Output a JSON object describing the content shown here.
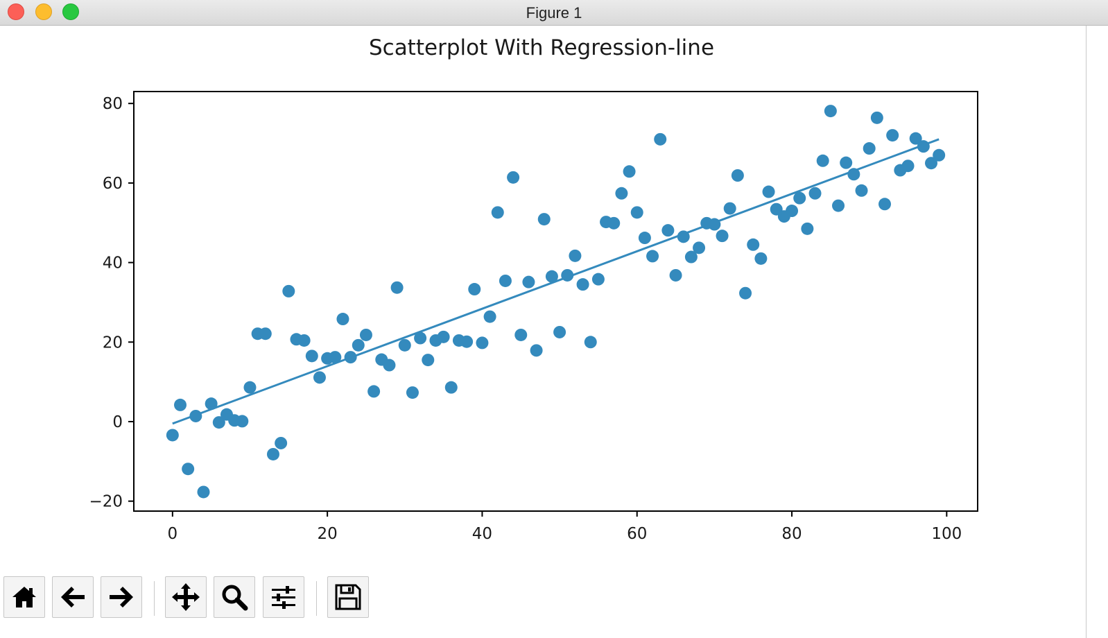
{
  "window": {
    "title": "Figure 1"
  },
  "toolbar": {
    "buttons": [
      {
        "name": "home-button",
        "icon": "home-icon"
      },
      {
        "name": "back-button",
        "icon": "arrow-left-icon"
      },
      {
        "name": "forward-button",
        "icon": "arrow-right-icon"
      },
      {
        "name": "pan-button",
        "icon": "move-icon"
      },
      {
        "name": "zoom-button",
        "icon": "magnifier-icon"
      },
      {
        "name": "configure-subplots-button",
        "icon": "sliders-icon"
      },
      {
        "name": "save-button",
        "icon": "floppy-disk-icon"
      }
    ]
  },
  "chart_data": {
    "type": "scatter",
    "title": "Scatterplot With Regression-line",
    "xlabel": "",
    "ylabel": "",
    "xlim": [
      -5,
      104
    ],
    "ylim": [
      -22.5,
      83
    ],
    "xticks": [
      0,
      20,
      40,
      60,
      80,
      100
    ],
    "yticks": [
      -20,
      0,
      20,
      40,
      60,
      80
    ],
    "grid": false,
    "colors": {
      "points": "#348abd",
      "line": "#348abd"
    },
    "series": [
      {
        "type": "scatter",
        "x": [
          0,
          1,
          2,
          3,
          4,
          5,
          6,
          7,
          8,
          9,
          10,
          11,
          12,
          13,
          14,
          15,
          16,
          17,
          18,
          19,
          20,
          21,
          22,
          23,
          24,
          25,
          26,
          27,
          28,
          29,
          30,
          31,
          32,
          33,
          34,
          35,
          36,
          37,
          38,
          39,
          40,
          41,
          42,
          43,
          44,
          45,
          46,
          47,
          48,
          49,
          50,
          51,
          52,
          53,
          54,
          55,
          56,
          57,
          58,
          59,
          60,
          61,
          62,
          63,
          64,
          65,
          66,
          67,
          68,
          69,
          70,
          71,
          72,
          73,
          74,
          75,
          76,
          77,
          78,
          79,
          80,
          81,
          82,
          83,
          84,
          85,
          86,
          87,
          88,
          89,
          90,
          91,
          92,
          93,
          94,
          95,
          96,
          97,
          98,
          99
        ],
        "y": [
          -3.4,
          4.2,
          -11.9,
          1.4,
          -17.7,
          4.5,
          -0.2,
          1.8,
          0.3,
          0.1,
          8.6,
          22.1,
          22.1,
          -8.2,
          -5.4,
          32.8,
          20.7,
          20.4,
          16.5,
          11.1,
          15.9,
          16.2,
          25.8,
          16.2,
          19.2,
          21.8,
          7.6,
          15.6,
          14.2,
          33.7,
          19.2,
          7.3,
          21.0,
          15.5,
          20.4,
          21.3,
          8.6,
          20.4,
          20.1,
          33.3,
          19.8,
          26.4,
          52.6,
          35.4,
          61.4,
          21.8,
          35.1,
          17.9,
          50.9,
          36.5,
          22.5,
          36.8,
          41.7,
          34.5,
          20.0,
          35.8,
          50.2,
          49.9,
          57.4,
          62.9,
          52.6,
          46.2,
          41.6,
          71.0,
          48.1,
          36.8,
          46.5,
          41.4,
          43.7,
          49.9,
          49.6,
          46.7,
          53.6,
          61.9,
          32.3,
          44.5,
          41.0,
          57.8,
          53.4,
          51.6,
          53.0,
          56.2,
          48.5,
          57.4,
          65.6,
          78.1,
          54.3,
          65.1,
          62.2,
          58.1,
          68.7,
          76.4,
          54.7,
          72.0,
          63.2,
          64.3,
          71.2,
          69.2,
          65.0,
          67.0
        ]
      },
      {
        "type": "line",
        "x": [
          0,
          99
        ],
        "y": [
          -0.5,
          71.0
        ]
      }
    ]
  }
}
